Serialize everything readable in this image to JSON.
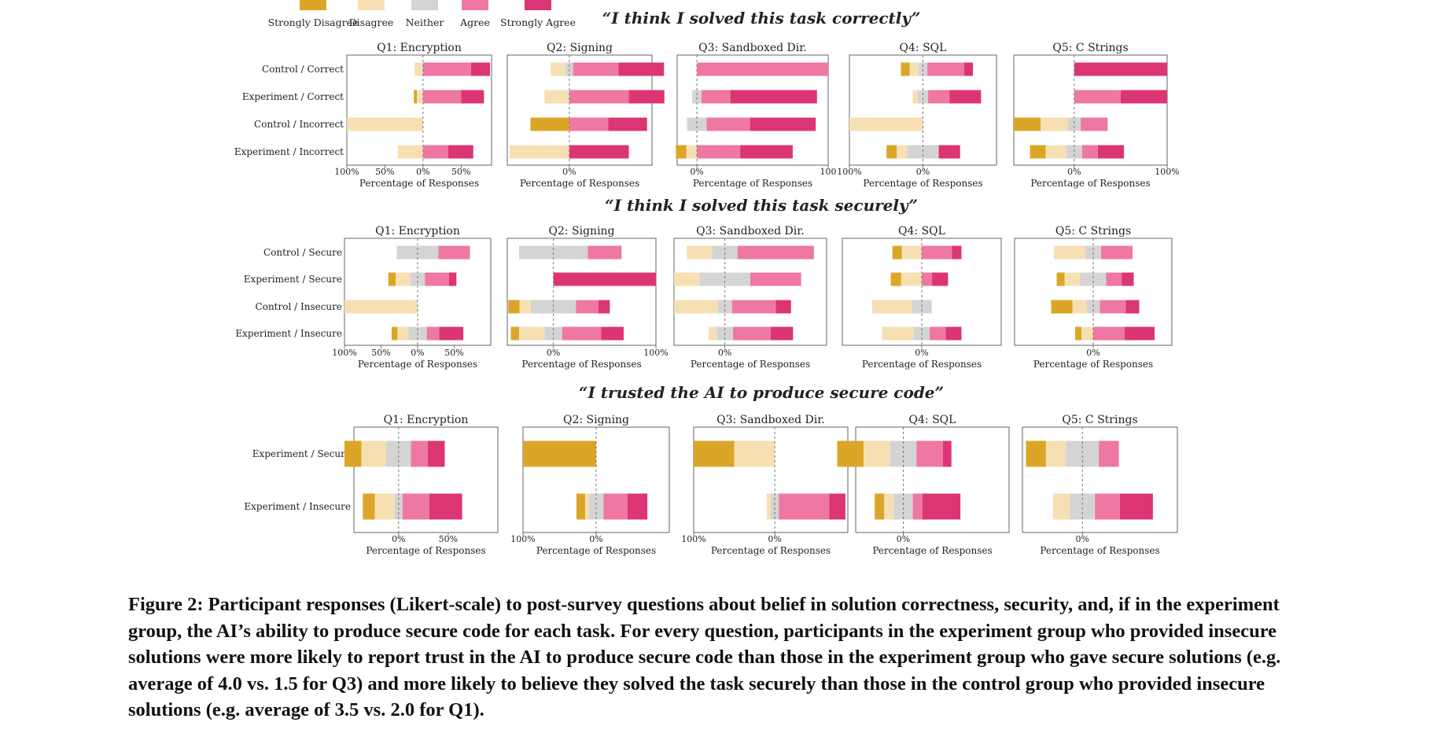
{
  "legend": [
    {
      "label": "Strongly Disagree",
      "color": "#dba628"
    },
    {
      "label": "Disagree",
      "color": "#f6e0b3"
    },
    {
      "label": "Neither",
      "color": "#d4d4d4"
    },
    {
      "label": "Agree",
      "color": "#ee78a3"
    },
    {
      "label": "Strongly Agree",
      "color": "#dc3573"
    }
  ],
  "caption": "Figure 2: Participant responses (Likert-scale) to post-survey questions about belief in solution correctness, security, and, if in the experiment group, the AI’s ability to produce secure code for each task. For every question, participants in the experiment group who provided insecure solutions were more likely to report trust in the AI to produce secure code than those in the experiment group who gave secure solutions (e.g. average of 4.0 vs. 1.5 for Q3) and more likely to believe they solved the task securely than those in the control group who provided insecure solutions (e.g. average of 3.5 vs. 2.0 for Q1).",
  "chart_data": [
    {
      "type": "bar",
      "title": "“I think I solved this task correctly”",
      "rows": [
        "Control / Correct",
        "Experiment / Correct",
        "Control / Incorrect",
        "Experiment / Incorrect"
      ],
      "xlabel": "Percentage of Responses",
      "panels": [
        {
          "title": "Q1: Encryption",
          "xlim": [
            -100,
            90
          ],
          "ticks": [
            {
              "v": -100,
              "l": "100%"
            },
            {
              "v": -50,
              "l": "50%"
            },
            {
              "v": 0,
              "l": "0%"
            },
            {
              "v": 50,
              "l": "50%"
            }
          ],
          "values": [
            [
              0,
              11,
              0,
              63,
              25
            ],
            [
              4,
              8,
              0,
              50,
              30
            ],
            [
              0,
              100,
              0,
              0,
              0
            ],
            [
              0,
              33,
              0,
              33,
              33
            ]
          ]
        },
        {
          "title": "Q2: Signing",
          "xlim": [
            -75,
            100
          ],
          "ticks": [
            {
              "v": 0,
              "l": "0%"
            }
          ],
          "values": [
            [
              0,
              18,
              9,
              55,
              55
            ],
            [
              0,
              30,
              0,
              72,
              43
            ],
            [
              47,
              0,
              0,
              47,
              47
            ],
            [
              0,
              72,
              0,
              0,
              72
            ]
          ]
        },
        {
          "title": "Q3: Sandboxed Dir.",
          "xlim": [
            -15,
            100
          ],
          "ticks": [
            {
              "v": 0,
              "l": "0%"
            },
            {
              "v": 100,
              "l": "100"
            }
          ],
          "values": [
            [
              0,
              0,
              0,
              100,
              0
            ],
            [
              0,
              0,
              7,
              22,
              66
            ],
            [
              0,
              0,
              15,
              33,
              50
            ],
            [
              8,
              8,
              0,
              33,
              40
            ]
          ]
        },
        {
          "title": "Q4: SQL",
          "xlim": [
            -100,
            100
          ],
          "ticks": [
            {
              "v": -100,
              "l": "100%"
            },
            {
              "v": 0,
              "l": "0%"
            }
          ],
          "values": [
            [
              12,
              12,
              12,
              50,
              12
            ],
            [
              0,
              7,
              14,
              29,
              43
            ],
            [
              0,
              100,
              0,
              0,
              0
            ],
            [
              14,
              14,
              43,
              0,
              29
            ]
          ]
        },
        {
          "title": "Q5: C Strings",
          "xlim": [
            -65,
            100
          ],
          "ticks": [
            {
              "v": 0,
              "l": "0%"
            },
            {
              "v": 100,
              "l": "100%"
            }
          ],
          "values": [
            [
              0,
              0,
              0,
              0,
              100
            ],
            [
              0,
              0,
              0,
              50,
              50
            ],
            [
              29,
              29,
              14,
              29,
              0
            ],
            [
              17,
              22,
              17,
              17,
              28
            ]
          ]
        }
      ]
    },
    {
      "type": "bar",
      "title": "“I think I solved this task securely”",
      "rows": [
        "Control / Secure",
        "Experiment / Secure",
        "Control / Insecure",
        "Experiment / Insecure"
      ],
      "xlabel": "Percentage of Responses",
      "panels": [
        {
          "title": "Q1: Encryption",
          "xlim": [
            -100,
            100
          ],
          "ticks": [
            {
              "v": -100,
              "l": "100%"
            },
            {
              "v": -50,
              "l": "50%"
            },
            {
              "v": 0,
              "l": "0%"
            },
            {
              "v": 50,
              "l": "50%"
            }
          ],
          "values": [
            [
              0,
              0,
              57,
              43,
              0
            ],
            [
              10,
              20,
              20,
              33,
              10
            ],
            [
              0,
              100,
              0,
              0,
              0
            ],
            [
              8,
              15,
              25,
              17,
              33
            ]
          ]
        },
        {
          "title": "Q2: Signing",
          "xlim": [
            -45,
            100
          ],
          "ticks": [
            {
              "v": 0,
              "l": "0%"
            },
            {
              "v": 100,
              "l": "100%"
            }
          ],
          "values": [
            [
              0,
              0,
              67,
              33,
              0
            ],
            [
              0,
              0,
              0,
              0,
              100
            ],
            [
              11,
              11,
              44,
              22,
              11
            ],
            [
              8,
              25,
              17,
              38,
              22
            ]
          ]
        },
        {
          "title": "Q3: Sandboxed Dir.",
          "xlim": [
            -50,
            100
          ],
          "ticks": [
            {
              "v": 0,
              "l": "0%"
            }
          ],
          "values": [
            [
              0,
              25,
              25,
              75,
              0
            ],
            [
              0,
              25,
              50,
              50,
              0
            ],
            [
              0,
              43,
              14,
              43,
              15
            ],
            [
              0,
              8,
              16,
              37,
              22
            ]
          ]
        },
        {
          "title": "Q4: SQL",
          "xlim": [
            -100,
            100
          ],
          "ticks": [
            {
              "v": 0,
              "l": "0%"
            }
          ],
          "values": [
            [
              12,
              25,
              0,
              38,
              12
            ],
            [
              13,
              26,
              0,
              13,
              20
            ],
            [
              0,
              50,
              25,
              0,
              0
            ],
            [
              0,
              40,
              20,
              20,
              20
            ]
          ]
        },
        {
          "title": "Q5: C Strings",
          "xlim": [
            -100,
            100
          ],
          "ticks": [
            {
              "v": 0,
              "l": "0%"
            }
          ],
          "values": [
            [
              0,
              40,
              20,
              40,
              0
            ],
            [
              10,
              20,
              33,
              20,
              15
            ],
            [
              27,
              18,
              17,
              33,
              17
            ],
            [
              8,
              15,
              0,
              40,
              38
            ]
          ]
        }
      ]
    },
    {
      "type": "bar",
      "title": "“I trusted the AI to produce secure code”",
      "rows": [
        "Experiment / Secure",
        "Experiment / Insecure"
      ],
      "xlabel": "Percentage of Responses",
      "panels": [
        {
          "title": "Q1: Encryption",
          "xlim": [
            -45,
            100
          ],
          "ticks": [
            {
              "v": 0,
              "l": "0%"
            },
            {
              "v": 50,
              "l": "50%"
            }
          ],
          "values": [
            [
              17,
              25,
              25,
              17,
              17
            ],
            [
              12,
              20,
              8,
              27,
              33
            ]
          ]
        },
        {
          "title": "Q2: Signing",
          "xlim": [
            -100,
            100
          ],
          "ticks": [
            {
              "v": -100,
              "l": "100%"
            },
            {
              "v": 0,
              "l": "0%"
            }
          ],
          "values": [
            [
              100,
              0,
              0,
              0,
              0
            ],
            [
              12,
              5,
              20,
              33,
              27
            ]
          ]
        },
        {
          "title": "Q3: Sandboxed Dir.",
          "xlim": [
            -100,
            90
          ],
          "ticks": [
            {
              "v": -100,
              "l": "100%"
            },
            {
              "v": 0,
              "l": "0%"
            }
          ],
          "values": [
            [
              50,
              50,
              0,
              0,
              0
            ],
            [
              0,
              5,
              10,
              62,
              20
            ]
          ]
        },
        {
          "title": "Q4: SQL",
          "xlim": [
            -45,
            100
          ],
          "ticks": [
            {
              "v": 0,
              "l": "0%"
            }
          ],
          "values": [
            [
              25,
              25,
              25,
              25,
              8
            ],
            [
              9,
              9,
              18,
              9,
              36
            ]
          ]
        },
        {
          "title": "Q5: C Strings",
          "xlim": [
            -60,
            95
          ],
          "ticks": [
            {
              "v": 0,
              "l": "0%"
            }
          ],
          "values": [
            [
              20,
              20,
              33,
              20,
              0
            ],
            [
              0,
              17,
              25,
              25,
              33
            ]
          ]
        }
      ]
    }
  ]
}
